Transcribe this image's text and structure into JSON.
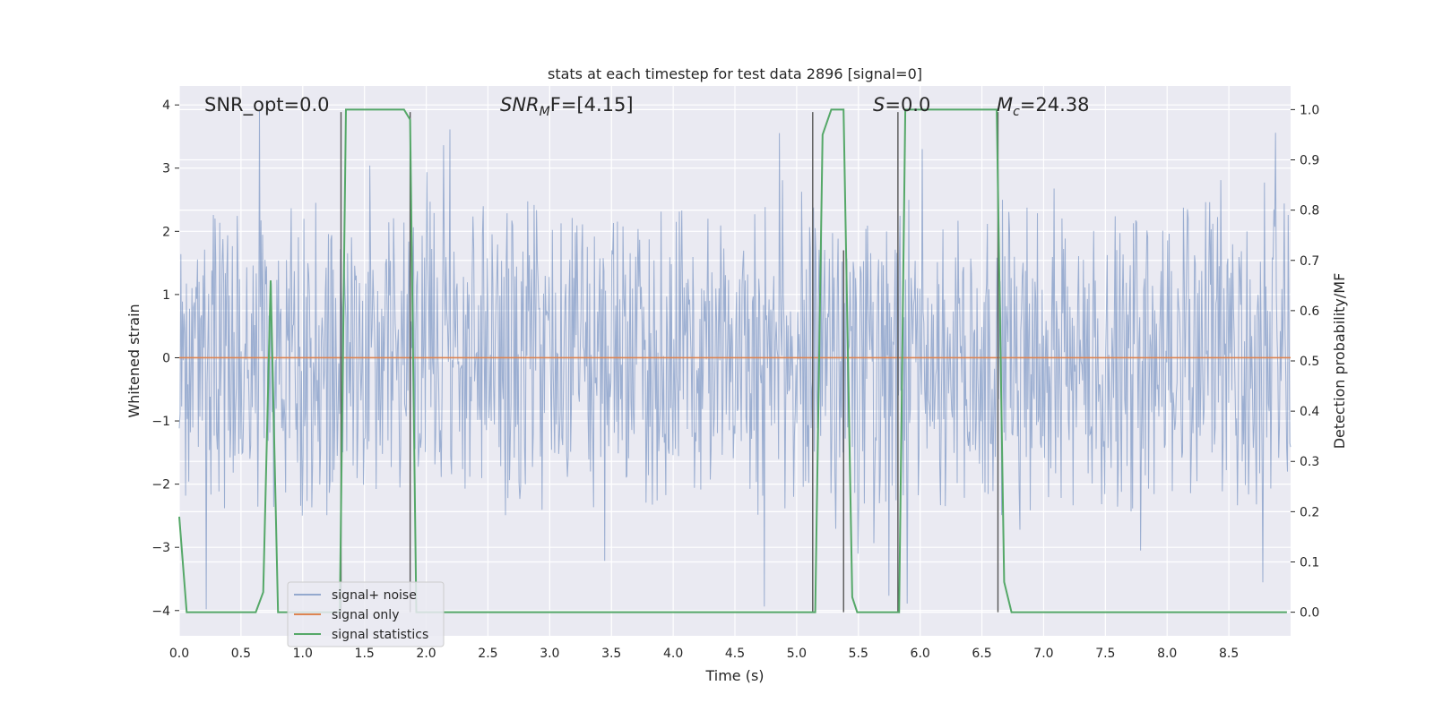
{
  "chart_data": {
    "type": "line",
    "title": "stats at each timestep for test data 2896 [signal=0]",
    "xlabel": "Time (s)",
    "ylabel": "Whitened strain",
    "y2label": "Detection probability/MF",
    "xlim": [
      0.0,
      9.0
    ],
    "ylim": [
      -4.4,
      4.3
    ],
    "y2lim": [
      -0.047,
      1.047
    ],
    "xticks": [
      "0.0",
      "0.5",
      "1.0",
      "1.5",
      "2.0",
      "2.5",
      "3.0",
      "3.5",
      "4.0",
      "4.5",
      "5.0",
      "5.5",
      "6.0",
      "6.5",
      "7.0",
      "7.5",
      "8.0",
      "8.5"
    ],
    "yticks": [
      "4",
      "3",
      "2",
      "1",
      "0",
      "−1",
      "−2",
      "−3",
      "−4"
    ],
    "y2ticks": [
      "1.0",
      "0.9",
      "0.8",
      "0.7",
      "0.6",
      "0.5",
      "0.4",
      "0.3",
      "0.2",
      "0.1",
      "0.0"
    ],
    "grid": true,
    "legend_position": "lower-left",
    "annotations": {
      "snr_opt": "SNR_opt=0.0",
      "snr_mf_base": "SNR",
      "snr_mf_sub": "M",
      "snr_mf_rest": "F=[4.15]",
      "s_italic": "S",
      "s_rest": "=0.0",
      "mc_italic": "M",
      "mc_sub": "c",
      "mc_rest": "=24.38"
    },
    "series": [
      {
        "name": "signal+ noise",
        "color": "#4c72b0",
        "noise_envelope": {
          "core_abs": 1.6,
          "max_abs": 4.0
        }
      },
      {
        "name": "signal only",
        "color": "#dd8452",
        "values": "constant 0"
      },
      {
        "name": "signal statistics",
        "color": "#55a868",
        "axis": "right",
        "points": [
          [
            0.0,
            0.19
          ],
          [
            0.06,
            0.0
          ],
          [
            0.13,
            0.0
          ],
          [
            0.62,
            0.0
          ],
          [
            0.68,
            0.04
          ],
          [
            0.74,
            0.66
          ],
          [
            0.8,
            0.0
          ],
          [
            1.28,
            0.0
          ],
          [
            1.3,
            0.0
          ],
          [
            1.35,
            1.0
          ],
          [
            1.38,
            1.0
          ],
          [
            1.5,
            1.0
          ],
          [
            1.65,
            1.0
          ],
          [
            1.82,
            1.0
          ],
          [
            1.87,
            0.98
          ],
          [
            1.92,
            0.0
          ],
          [
            5.1,
            0.0
          ],
          [
            5.15,
            0.0
          ],
          [
            5.21,
            0.95
          ],
          [
            5.28,
            1.0
          ],
          [
            5.38,
            1.0
          ],
          [
            5.45,
            0.03
          ],
          [
            5.49,
            0.0
          ],
          [
            5.78,
            0.0
          ],
          [
            5.83,
            0.0
          ],
          [
            5.88,
            1.0
          ],
          [
            6.62,
            1.0
          ],
          [
            6.68,
            0.06
          ],
          [
            6.74,
            0.0
          ],
          [
            8.97,
            0.0
          ]
        ]
      }
    ],
    "vertical_markers": [
      {
        "x": 1.31,
        "y_top": 0.995
      },
      {
        "x": 1.87,
        "y_top": 0.995
      },
      {
        "x": 5.13,
        "y_top": 0.995
      },
      {
        "x": 5.38,
        "y_top": 0.72
      },
      {
        "x": 5.82,
        "y_top": 0.995
      },
      {
        "x": 6.63,
        "y_top": 0.995
      }
    ],
    "colors": {
      "plot_background": "#eaeaf2",
      "grid": "#ffffff",
      "marker": "#555555"
    }
  }
}
